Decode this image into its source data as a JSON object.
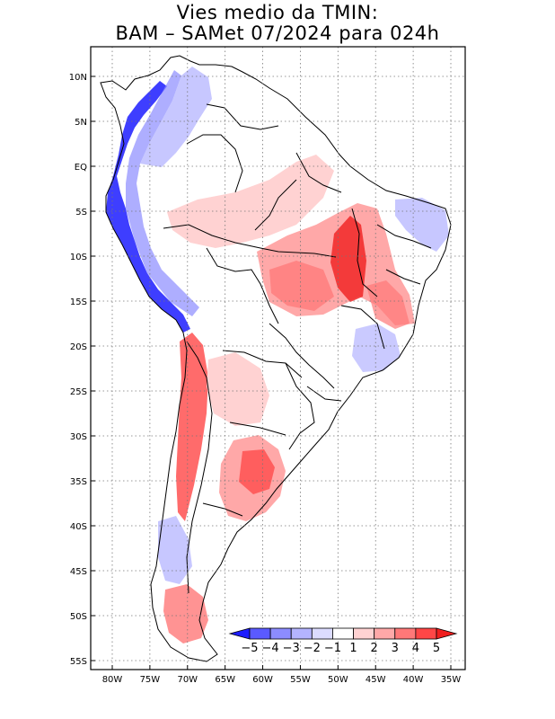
{
  "title_line1": "Vies medio da TMIN:",
  "title_line2": "BAM – SAMet 07/2024  para 024h",
  "map": {
    "lat_ticks": [
      "10N",
      "5N",
      "EQ",
      "5S",
      "10S",
      "15S",
      "20S",
      "25S",
      "30S",
      "35S",
      "40S",
      "45S",
      "50S",
      "55S"
    ],
    "lon_ticks": [
      "80W",
      "75W",
      "70W",
      "65W",
      "60W",
      "55W",
      "50W",
      "45W",
      "40W",
      "35W"
    ],
    "lat_range": [
      10,
      -55
    ],
    "lon_range": [
      -80,
      -35
    ],
    "grid": "dotted"
  },
  "colorbar": {
    "labels": [
      "−5",
      "−4",
      "−3",
      "−2",
      "−1",
      "1",
      "2",
      "3",
      "4",
      "5"
    ],
    "colors": [
      "#1c1cff",
      "#5a5aff",
      "#8c8cff",
      "#b4b4ff",
      "#dcdcff",
      "#ffffff",
      "#ffd2d2",
      "#ffa8a8",
      "#ff7878",
      "#ff4646",
      "#f01e1e"
    ],
    "placement": "bottom-right"
  }
}
